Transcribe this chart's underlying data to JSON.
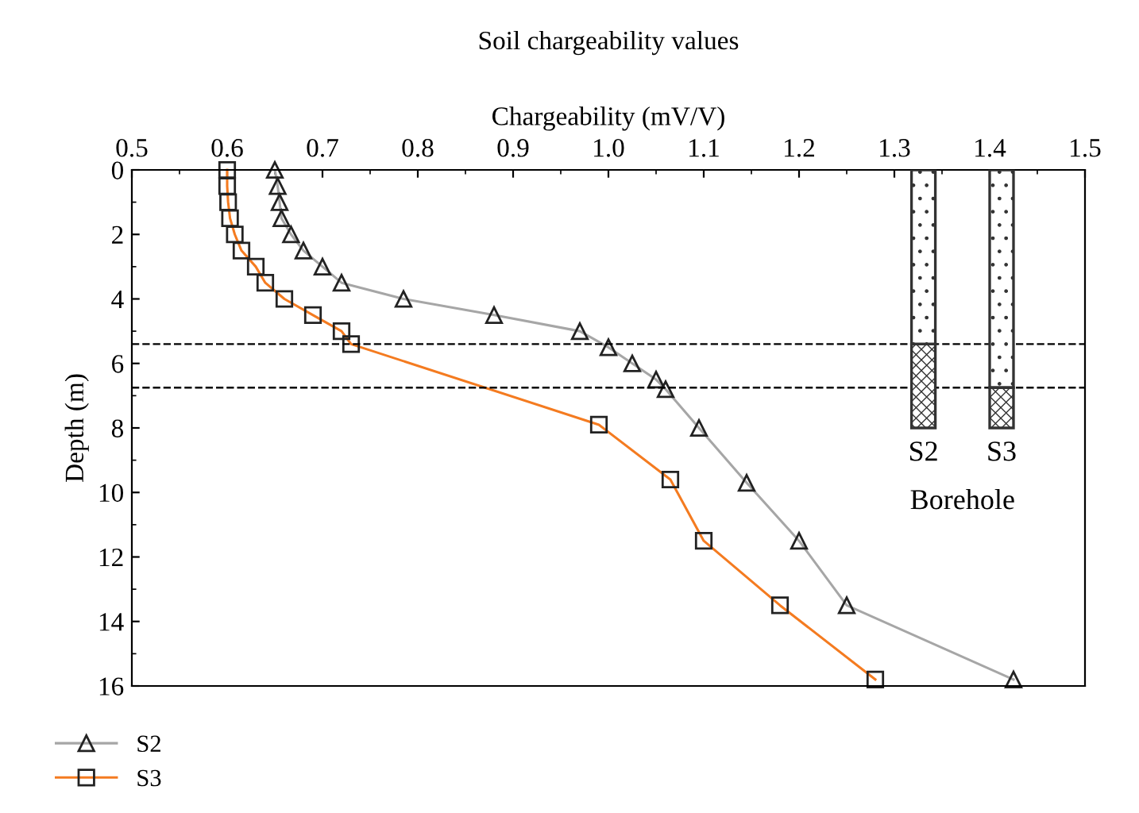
{
  "chart_data": {
    "type": "line",
    "title": "Soil chargeability values",
    "xlabel": "Chargeability (mV/V)",
    "ylabel": "Depth (m)",
    "xlim": [
      0.5,
      1.5
    ],
    "xticks": [
      0.5,
      0.6,
      0.7,
      0.8,
      0.9,
      {
        "value": 1.0,
        "label": "1.0"
      },
      1.1,
      1.2,
      1.3,
      1.4,
      1.5
    ],
    "ylim": [
      16,
      0
    ],
    "yticks": [
      0,
      2,
      4,
      6,
      8,
      10,
      12,
      14,
      16
    ],
    "series": [
      {
        "name": "S2",
        "color": "#a6a6a6",
        "marker": "triangle",
        "x": [
          0.65,
          0.653,
          0.655,
          0.657,
          0.667,
          0.68,
          0.7,
          0.72,
          0.785,
          0.88,
          0.97,
          1.0,
          1.025,
          1.05,
          1.06,
          1.095,
          1.145,
          1.2,
          1.25,
          1.425
        ],
        "values": [
          0,
          0.5,
          1,
          1.5,
          2,
          2.5,
          3,
          3.5,
          4,
          4.5,
          5,
          5.5,
          6,
          6.5,
          6.8,
          8,
          9.7,
          11.5,
          13.5,
          15.8
        ]
      },
      {
        "name": "S3",
        "color": "#f47b20",
        "marker": "square",
        "x": [
          0.6,
          0.6,
          0.601,
          0.603,
          0.608,
          0.615,
          0.63,
          0.64,
          0.66,
          0.69,
          0.72,
          0.73,
          0.99,
          1.065,
          1.1,
          1.18,
          1.28
        ],
        "values": [
          0,
          0.5,
          1,
          1.5,
          2,
          2.5,
          3,
          3.5,
          4,
          4.5,
          5,
          5.4,
          7.9,
          9.6,
          11.5,
          13.5,
          15.8
        ]
      },
      {
        "type": "bar",
        "color": "#333333",
        "x": [
          1.3305,
          1.4125
        ],
        "base": [
          0,
          0
        ],
        "values": [
          5.4,
          6.75
        ]
      },
      {
        "type": "bar",
        "color": "#333333",
        "x": [
          1.3305,
          1.4125
        ],
        "base": [
          5.4,
          6.75
        ],
        "values": [
          2.6,
          1.25
        ]
      }
    ],
    "ref_lines": [
      {
        "axis": "y",
        "value": 5.4,
        "line_style": "dashed",
        "color": "#000000"
      },
      {
        "axis": "y",
        "value": 6.75,
        "line_style": "dashed",
        "color": "#000000"
      }
    ],
    "annotations": [
      "S2",
      "S3",
      "Borehole"
    ],
    "legend": "bottom left",
    "grid": false
  }
}
